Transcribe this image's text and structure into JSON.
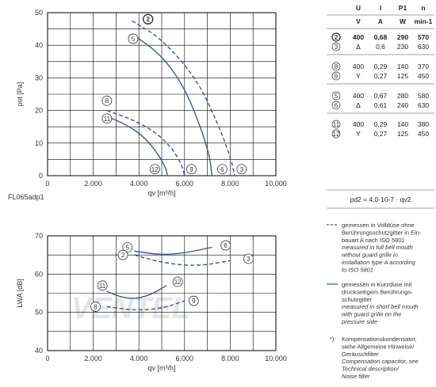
{
  "chart_data": [
    {
      "type": "line",
      "xlabel": "qv [m³/h]",
      "ylabel": "pst [Pa]",
      "xlim": [
        0,
        10000
      ],
      "ylim": [
        0,
        50
      ],
      "x_ticks": [
        "0",
        "2.000",
        "4.000",
        "6.000",
        "8.000",
        "10.000"
      ],
      "y_ticks": [
        "0",
        "10",
        "20",
        "30",
        "40",
        "50"
      ],
      "grid": true,
      "footnote": "FL065adp1",
      "series": [
        {
          "name": "2",
          "style": "dashed",
          "points": [
            [
              3700,
              47.5
            ],
            [
              5000,
              42
            ],
            [
              6500,
              30
            ],
            [
              7400,
              17
            ],
            [
              8000,
              6
            ],
            [
              8200,
              0
            ]
          ]
        },
        {
          "name": "5",
          "style": "solid",
          "points": [
            [
              3700,
              43.5
            ],
            [
              5000,
              37
            ],
            [
              6000,
              27
            ],
            [
              6700,
              15
            ],
            [
              7100,
              6
            ],
            [
              7200,
              0
            ]
          ]
        },
        {
          "name": "8",
          "style": "dashed",
          "points": [
            [
              2600,
              20
            ],
            [
              3800,
              17
            ],
            [
              4800,
              13
            ],
            [
              5500,
              8
            ],
            [
              5900,
              3
            ],
            [
              6000,
              0
            ]
          ]
        },
        {
          "name": "11",
          "style": "solid",
          "points": [
            [
              2500,
              18.5
            ],
            [
              3500,
              15.5
            ],
            [
              4300,
              11.5
            ],
            [
              4900,
              6
            ],
            [
              5200,
              2
            ],
            [
              5250,
              0
            ]
          ]
        }
      ],
      "markers": [
        {
          "label": "2",
          "x": 4400,
          "y": 48,
          "bold": true
        },
        {
          "label": "5",
          "x": 3750,
          "y": 42
        },
        {
          "label": "8",
          "x": 2600,
          "y": 23
        },
        {
          "label": "11",
          "x": 2600,
          "y": 17.5
        },
        {
          "label": "12",
          "x": 4700,
          "y": 2
        },
        {
          "label": "9",
          "x": 6300,
          "y": 2
        },
        {
          "label": "6",
          "x": 7650,
          "y": 2
        },
        {
          "label": "3",
          "x": 8500,
          "y": 2
        }
      ]
    },
    {
      "type": "line",
      "xlabel": "qv [m³/h]",
      "ylabel": "LWA [dB]",
      "xlim": [
        0,
        10000
      ],
      "ylim": [
        40,
        70
      ],
      "x_ticks": [
        "0",
        "2.000",
        "4.000",
        "6.000",
        "8.000",
        "10.000"
      ],
      "y_ticks": [
        "40",
        "50",
        "60",
        "70"
      ],
      "grid": true,
      "series": [
        {
          "name": "5",
          "style": "solid",
          "points": [
            [
              3800,
              66
            ],
            [
              5000,
              65
            ],
            [
              6000,
              65.5
            ],
            [
              7200,
              67
            ]
          ]
        },
        {
          "name": "2",
          "style": "dashed",
          "points": [
            [
              3800,
              65
            ],
            [
              5000,
              63
            ],
            [
              6500,
              62
            ],
            [
              8000,
              63.5
            ]
          ]
        },
        {
          "name": "11",
          "style": "solid",
          "points": [
            [
              2600,
              55.5
            ],
            [
              3200,
              54
            ],
            [
              3800,
              53.5
            ],
            [
              4500,
              54.5
            ],
            [
              5200,
              57
            ]
          ]
        },
        {
          "name": "8",
          "style": "dashed",
          "points": [
            [
              2600,
              51.5
            ],
            [
              3800,
              50.5
            ],
            [
              5000,
              51
            ],
            [
              6000,
              53
            ]
          ]
        }
      ],
      "markers": [
        {
          "label": "5",
          "x": 3500,
          "y": 67
        },
        {
          "label": "2",
          "x": 3300,
          "y": 65
        },
        {
          "label": "6",
          "x": 7800,
          "y": 67.5
        },
        {
          "label": "3",
          "x": 8800,
          "y": 64
        },
        {
          "label": "11",
          "x": 2400,
          "y": 57
        },
        {
          "label": "12",
          "x": 5700,
          "y": 58
        },
        {
          "label": "8",
          "x": 2100,
          "y": 51.5
        },
        {
          "label": "9",
          "x": 6400,
          "y": 53
        }
      ]
    }
  ],
  "table": {
    "headers": [
      "U",
      "I",
      "P1",
      "n"
    ],
    "units": [
      "V",
      "A",
      "W",
      "min-1"
    ],
    "rows": [
      {
        "mark": "2",
        "bold": true,
        "values": [
          "400",
          "0,68",
          "290",
          "570"
        ]
      },
      {
        "mark": "3",
        "bold": false,
        "values": [
          "Δ",
          "0,6",
          "230",
          "630"
        ]
      },
      {
        "mark": "8",
        "bold": false,
        "values": [
          "400",
          "0,29",
          "140",
          "370"
        ]
      },
      {
        "mark": "9",
        "bold": false,
        "values": [
          "Y",
          "0,27",
          "125",
          "450"
        ]
      },
      {
        "mark": "5",
        "bold": false,
        "values": [
          "400",
          "0,67",
          "280",
          "580"
        ]
      },
      {
        "mark": "6",
        "bold": false,
        "values": [
          "Δ",
          "0,61",
          "240",
          "630"
        ]
      },
      {
        "mark": "11",
        "bold": false,
        "values": [
          "400",
          "0,29",
          "140",
          "380"
        ]
      },
      {
        "mark": "12",
        "bold": false,
        "values": [
          "Y",
          "0,27",
          "125",
          "450"
        ]
      }
    ],
    "formula": "pd2 = 4,0·10-7 · qv2"
  },
  "legend": [
    {
      "style": "dashed",
      "lines": [
        {
          "t": "gemessen in Volldüse ohne",
          "i": false
        },
        {
          "t": "Berührungsschutzgitter in Ein-",
          "i": false
        },
        {
          "t": "bauart A nach ISO 5801",
          "i": false
        },
        {
          "t": "measured in full bell mouth",
          "i": true
        },
        {
          "t": "without guard grille in",
          "i": true
        },
        {
          "t": "installation type A according",
          "i": true
        },
        {
          "t": "to ISO 5801",
          "i": true
        }
      ]
    },
    {
      "style": "solid",
      "lines": [
        {
          "t": "gemessen in Kurzdüse mit",
          "i": false
        },
        {
          "t": "druckseitigem Berührungs-",
          "i": false
        },
        {
          "t": "schutzgitter",
          "i": false
        },
        {
          "t": "measured in short bell mouth",
          "i": true
        },
        {
          "t": "with guard grille on the",
          "i": true
        },
        {
          "t": "pressure side",
          "i": true
        }
      ]
    },
    {
      "style": "note",
      "symbol": "*)",
      "lines": [
        {
          "t": "Kompensationskondensator,",
          "i": false
        },
        {
          "t": "siehe Allgemeine Hinweise/",
          "i": false
        },
        {
          "t": "Geräuschfilter",
          "i": false
        },
        {
          "t": "Compensation capacitor, see",
          "i": true
        },
        {
          "t": "Technical description/",
          "i": true
        },
        {
          "t": "Noise filter",
          "i": true
        }
      ]
    }
  ],
  "watermark": "VENTEL",
  "colors": {
    "curve": "#3a5a8c",
    "grid": "#000000",
    "table_rule": "#888888"
  }
}
